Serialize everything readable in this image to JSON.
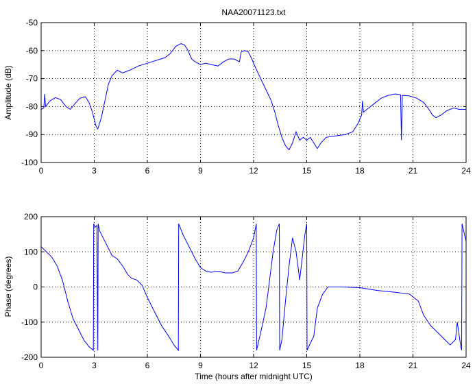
{
  "figure_title": "NAA20071123.txt",
  "colors": {
    "series": "#0000ff",
    "axes": "#000000",
    "grid": "#000000",
    "background": "#ffffff"
  },
  "chart_data": [
    {
      "type": "line",
      "title": "NAA20071123.txt",
      "xlabel": "",
      "ylabel": "Amplitude (dB)",
      "xlim": [
        0,
        24
      ],
      "ylim": [
        -100,
        -50
      ],
      "x_ticks": [
        0,
        3,
        6,
        9,
        12,
        15,
        18,
        21,
        24
      ],
      "y_ticks": [
        -100,
        -90,
        -80,
        -70,
        -60,
        -50
      ],
      "grid": true,
      "series": [
        {
          "points": [
            [
              0,
              -81
            ],
            [
              0.15,
              -80.5
            ],
            [
              0.2,
              -75.5
            ],
            [
              0.25,
              -80
            ],
            [
              0.5,
              -78
            ],
            [
              0.8,
              -76.8
            ],
            [
              1.1,
              -77.5
            ],
            [
              1.4,
              -80
            ],
            [
              1.65,
              -81
            ],
            [
              1.9,
              -79
            ],
            [
              2.2,
              -77
            ],
            [
              2.5,
              -76.5
            ],
            [
              2.7,
              -78.5
            ],
            [
              2.9,
              -82
            ],
            [
              3.1,
              -87
            ],
            [
              3.2,
              -88
            ],
            [
              3.4,
              -84
            ],
            [
              3.6,
              -78
            ],
            [
              3.8,
              -72
            ],
            [
              4.0,
              -69
            ],
            [
              4.3,
              -67
            ],
            [
              4.6,
              -68
            ],
            [
              5.0,
              -67
            ],
            [
              5.5,
              -65.5
            ],
            [
              6.0,
              -64.5
            ],
            [
              6.5,
              -63.5
            ],
            [
              7.0,
              -62.5
            ],
            [
              7.3,
              -61
            ],
            [
              7.6,
              -58.5
            ],
            [
              7.9,
              -57.5
            ],
            [
              8.1,
              -58
            ],
            [
              8.3,
              -60
            ],
            [
              8.5,
              -63
            ],
            [
              8.7,
              -64
            ],
            [
              9.0,
              -65
            ],
            [
              9.3,
              -64.5
            ],
            [
              9.6,
              -65
            ],
            [
              10.0,
              -65.5
            ],
            [
              10.3,
              -64
            ],
            [
              10.6,
              -63
            ],
            [
              10.9,
              -63
            ],
            [
              11.2,
              -64
            ],
            [
              11.3,
              -60.5
            ],
            [
              11.5,
              -60
            ],
            [
              11.7,
              -60.5
            ],
            [
              11.9,
              -63
            ],
            [
              12.1,
              -66
            ],
            [
              12.4,
              -70
            ],
            [
              12.7,
              -74
            ],
            [
              13.0,
              -78
            ],
            [
              13.2,
              -82
            ],
            [
              13.4,
              -87
            ],
            [
              13.6,
              -91
            ],
            [
              13.8,
              -94
            ],
            [
              14.0,
              -95.5
            ],
            [
              14.2,
              -93
            ],
            [
              14.4,
              -89
            ],
            [
              14.6,
              -92
            ],
            [
              14.8,
              -91
            ],
            [
              15.0,
              -92
            ],
            [
              15.2,
              -91
            ],
            [
              15.4,
              -93
            ],
            [
              15.6,
              -95
            ],
            [
              15.8,
              -93
            ],
            [
              16.1,
              -91
            ],
            [
              16.6,
              -90.5
            ],
            [
              17.2,
              -90
            ],
            [
              17.6,
              -89
            ],
            [
              17.9,
              -86
            ],
            [
              18.1,
              -83
            ],
            [
              18.15,
              -78
            ],
            [
              18.2,
              -82
            ],
            [
              18.4,
              -81
            ],
            [
              18.8,
              -79
            ],
            [
              19.2,
              -77
            ],
            [
              19.6,
              -76
            ],
            [
              20.0,
              -75.5
            ],
            [
              20.3,
              -75.8
            ],
            [
              20.35,
              -92
            ],
            [
              20.4,
              -76
            ],
            [
              20.8,
              -76.2
            ],
            [
              21.2,
              -77
            ],
            [
              21.6,
              -78.5
            ],
            [
              21.9,
              -81
            ],
            [
              22.1,
              -83
            ],
            [
              22.3,
              -84
            ],
            [
              22.6,
              -83
            ],
            [
              22.9,
              -81.5
            ],
            [
              23.3,
              -80.5
            ],
            [
              23.6,
              -81
            ],
            [
              24.0,
              -81
            ]
          ]
        }
      ]
    },
    {
      "type": "line",
      "title": "",
      "xlabel": "Time (hours after midnight UTC)",
      "ylabel": "Phase (degrees)",
      "xlim": [
        0,
        24
      ],
      "ylim": [
        -200,
        200
      ],
      "x_ticks": [
        0,
        3,
        6,
        9,
        12,
        15,
        18,
        21,
        24
      ],
      "y_ticks": [
        -200,
        -100,
        0,
        100,
        200
      ],
      "grid": true,
      "series": [
        {
          "points": [
            [
              0,
              115
            ],
            [
              0.3,
              100
            ],
            [
              0.6,
              85
            ],
            [
              0.9,
              60
            ],
            [
              1.2,
              20
            ],
            [
              1.5,
              -40
            ],
            [
              1.8,
              -90
            ],
            [
              2.1,
              -120
            ],
            [
              2.4,
              -150
            ],
            [
              2.7,
              -170
            ],
            [
              2.95,
              -180
            ],
            [
              2.97,
              180
            ],
            [
              3.05,
              170
            ],
            [
              3.15,
              175
            ],
            [
              3.2,
              -180
            ],
            [
              3.22,
              180
            ],
            [
              3.3,
              160
            ],
            [
              3.5,
              140
            ],
            [
              3.8,
              110
            ],
            [
              4.0,
              90
            ],
            [
              4.3,
              80
            ],
            [
              4.6,
              60
            ],
            [
              4.9,
              35
            ],
            [
              5.1,
              25
            ],
            [
              5.4,
              20
            ],
            [
              5.7,
              5
            ],
            [
              6.0,
              -30
            ],
            [
              6.4,
              -70
            ],
            [
              6.8,
              -110
            ],
            [
              7.2,
              -140
            ],
            [
              7.5,
              -165
            ],
            [
              7.75,
              -180
            ],
            [
              7.77,
              180
            ],
            [
              8.0,
              150
            ],
            [
              8.4,
              110
            ],
            [
              8.7,
              80
            ],
            [
              9.0,
              55
            ],
            [
              9.3,
              45
            ],
            [
              9.6,
              42
            ],
            [
              10.0,
              45
            ],
            [
              10.4,
              40
            ],
            [
              10.8,
              40
            ],
            [
              11.1,
              45
            ],
            [
              11.4,
              70
            ],
            [
              11.7,
              100
            ],
            [
              12.0,
              140
            ],
            [
              12.15,
              180
            ],
            [
              12.17,
              -180
            ],
            [
              12.4,
              -130
            ],
            [
              12.7,
              -60
            ],
            [
              12.9,
              20
            ],
            [
              13.1,
              100
            ],
            [
              13.3,
              160
            ],
            [
              13.45,
              180
            ],
            [
              13.47,
              -180
            ],
            [
              13.6,
              -150
            ],
            [
              13.8,
              -40
            ],
            [
              14.0,
              60
            ],
            [
              14.2,
              140
            ],
            [
              14.4,
              100
            ],
            [
              14.6,
              20
            ],
            [
              14.9,
              150
            ],
            [
              15.0,
              180
            ],
            [
              15.02,
              -180
            ],
            [
              15.2,
              -160
            ],
            [
              15.4,
              -140
            ],
            [
              15.6,
              -60
            ],
            [
              15.9,
              -20
            ],
            [
              16.2,
              0
            ],
            [
              17.0,
              0
            ],
            [
              18.0,
              -2
            ],
            [
              19.0,
              -10
            ],
            [
              20.0,
              -15
            ],
            [
              20.8,
              -20
            ],
            [
              21.3,
              -40
            ],
            [
              21.6,
              -80
            ],
            [
              22.0,
              -110
            ],
            [
              22.4,
              -130
            ],
            [
              22.8,
              -150
            ],
            [
              23.1,
              -165
            ],
            [
              23.4,
              -150
            ],
            [
              23.5,
              -100
            ],
            [
              23.7,
              -170
            ],
            [
              23.75,
              -180
            ],
            [
              23.77,
              180
            ],
            [
              24.0,
              130
            ]
          ]
        }
      ]
    }
  ]
}
